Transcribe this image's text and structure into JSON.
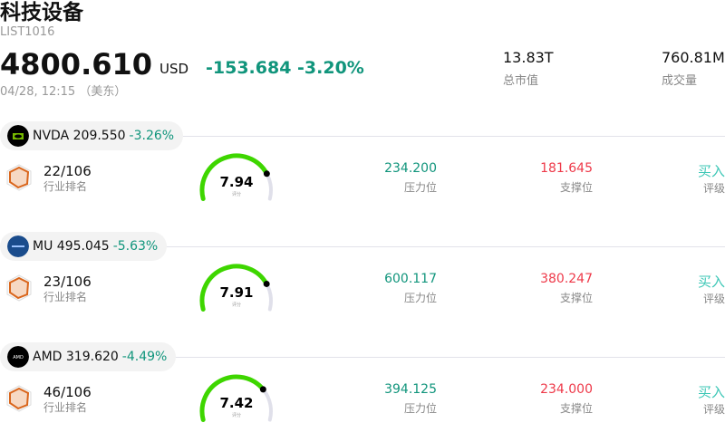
{
  "header": {
    "title": "科技设备",
    "code": "LIST1016",
    "price": "4800.610",
    "currency": "USD",
    "change": "-153.684 -3.20%",
    "time": "04/28, 12:15 （美东）"
  },
  "stats": [
    {
      "value": "13.83T",
      "label": "总市值"
    },
    {
      "value": "760.81M",
      "label": "成交量"
    }
  ],
  "colors": {
    "up": "#11957c",
    "down": "#ee3a4a",
    "gauge": "#3ed600",
    "rating": "#3cc7b6"
  },
  "labels": {
    "rank": "行业排名",
    "score": "评分",
    "resistance": "压力位",
    "support": "支撑位",
    "rating": "评级"
  },
  "stocks": [
    {
      "ticker": "NVDA",
      "price": "209.550",
      "pct": "-3.26%",
      "rank": "22/106",
      "score": "7.94",
      "score_value": 7.94,
      "resistance": "234.200",
      "support": "181.645",
      "rating": "买入",
      "logo": "nvidia-logo-icon"
    },
    {
      "ticker": "MU",
      "price": "495.045",
      "pct": "-5.63%",
      "rank": "23/106",
      "score": "7.91",
      "score_value": 7.91,
      "resistance": "600.117",
      "support": "380.247",
      "rating": "买入",
      "logo": "micron-logo-icon"
    },
    {
      "ticker": "AMD",
      "price": "319.620",
      "pct": "-4.49%",
      "rank": "46/106",
      "score": "7.42",
      "score_value": 7.42,
      "resistance": "394.125",
      "support": "234.000",
      "rating": "买入",
      "logo": "amd-logo-icon"
    }
  ]
}
